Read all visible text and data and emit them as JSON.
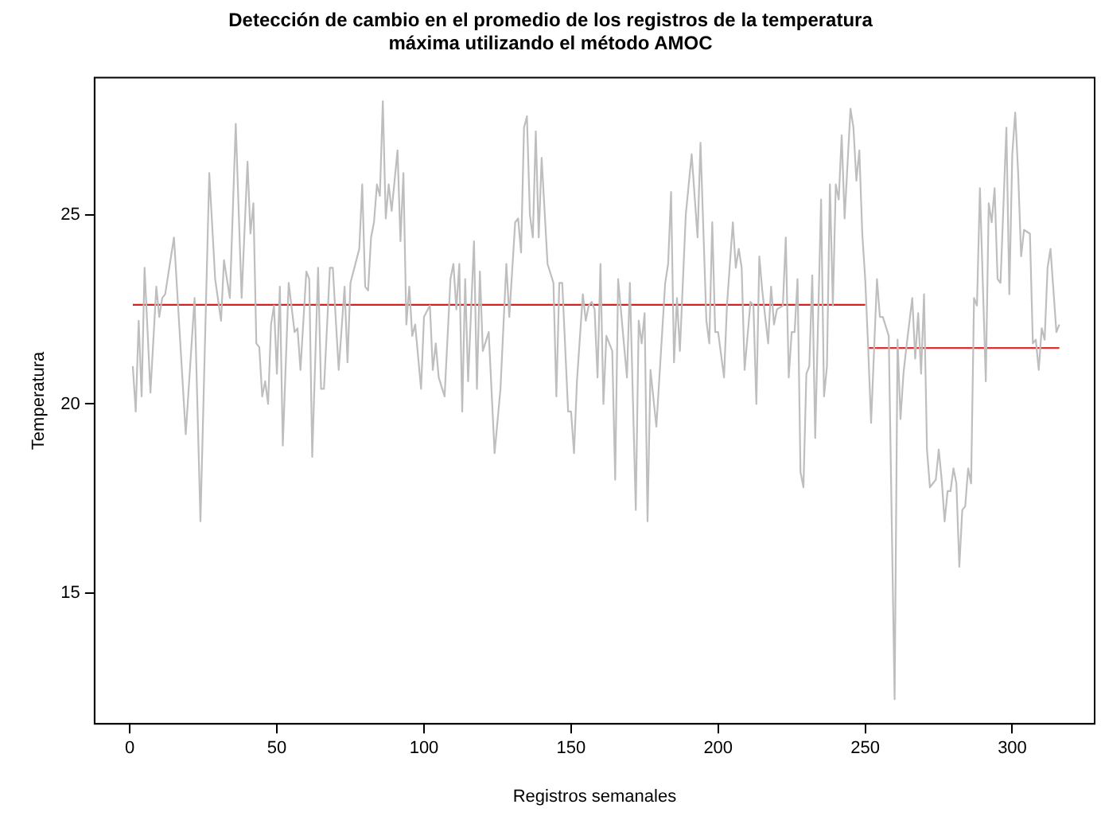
{
  "chart_data": {
    "type": "line",
    "title": [
      "Detección de cambio en el promedio de los registros de la temperatura",
      "máxima utilizando el método AMOC"
    ],
    "xlabel": "Registros semanales",
    "ylabel": "Temperatura",
    "xlim": [
      -12,
      328
    ],
    "xticks": [
      0,
      50,
      100,
      150,
      200,
      250,
      300
    ],
    "ylim": [
      11.55,
      28.62
    ],
    "yticks": [
      15,
      20,
      25
    ],
    "grid": false,
    "legend": false,
    "marker": "none",
    "line_style": "solid",
    "series": [
      {
        "color": "#bebebe",
        "x": [
          1,
          2,
          3,
          4,
          5,
          7,
          9,
          10,
          11,
          12,
          15,
          19,
          22,
          24,
          27,
          29,
          31,
          32,
          34,
          36,
          38,
          40,
          41,
          42,
          43,
          44,
          45,
          46,
          47,
          48,
          49,
          50,
          51,
          52,
          54,
          56,
          57,
          58,
          60,
          61,
          62,
          64,
          65,
          66,
          68,
          69,
          71,
          73,
          74,
          75,
          78,
          79,
          80,
          81,
          82,
          83,
          84,
          85,
          86,
          87,
          88,
          89,
          91,
          92,
          93,
          94,
          95,
          96,
          97,
          99,
          100,
          102,
          103,
          104,
          105,
          107,
          109,
          110,
          111,
          112,
          113,
          114,
          115,
          117,
          118,
          119,
          120,
          122,
          124,
          126,
          128,
          129,
          131,
          132,
          133,
          134,
          135,
          136,
          137,
          138,
          139,
          140,
          142,
          144,
          145,
          146,
          147,
          149,
          150,
          151,
          152,
          154,
          155,
          156,
          157,
          158,
          159,
          160,
          161,
          162,
          164,
          165,
          166,
          169,
          170,
          172,
          173,
          174,
          175,
          176,
          177,
          179,
          182,
          183,
          184,
          185,
          186,
          187,
          189,
          191,
          193,
          194,
          196,
          197,
          198,
          199,
          200,
          202,
          203,
          205,
          206,
          207,
          208,
          209,
          211,
          212,
          213,
          214,
          215,
          217,
          218,
          219,
          220,
          222,
          223,
          224,
          225,
          226,
          227,
          228,
          229,
          230,
          231,
          232,
          233,
          235,
          236,
          237,
          238,
          239,
          240,
          241,
          242,
          243,
          245,
          246,
          247,
          248,
          249,
          250,
          251,
          252,
          254,
          255,
          256,
          258,
          260,
          261,
          262,
          263,
          264,
          266,
          267,
          268,
          269,
          270,
          271,
          272,
          274,
          275,
          276,
          277,
          278,
          279,
          280,
          281,
          282,
          283,
          284,
          285,
          286,
          287,
          288,
          289,
          291,
          292,
          293,
          294,
          295,
          296,
          298,
          299,
          300,
          301,
          302,
          303,
          304,
          306,
          307,
          308,
          309,
          310,
          311,
          312,
          313,
          314,
          315,
          316
        ],
        "values": [
          21.0,
          19.8,
          22.2,
          20.2,
          23.6,
          20.3,
          23.1,
          22.3,
          22.8,
          22.9,
          24.4,
          19.2,
          22.8,
          16.9,
          26.1,
          23.3,
          22.2,
          23.8,
          22.8,
          27.4,
          22.8,
          26.4,
          24.5,
          25.3,
          21.6,
          21.5,
          20.2,
          20.6,
          20.0,
          22.1,
          22.6,
          20.8,
          23.1,
          18.9,
          23.2,
          21.9,
          22.0,
          20.9,
          23.5,
          23.3,
          18.6,
          23.6,
          20.4,
          20.4,
          23.6,
          23.6,
          20.9,
          23.1,
          21.1,
          23.2,
          24.1,
          25.8,
          23.1,
          23.0,
          24.4,
          24.8,
          25.8,
          25.5,
          28.0,
          24.9,
          25.8,
          25.1,
          26.7,
          24.3,
          26.1,
          22.1,
          23.1,
          21.8,
          22.1,
          20.4,
          22.3,
          22.6,
          20.9,
          21.6,
          20.7,
          20.2,
          23.3,
          23.7,
          22.5,
          23.7,
          19.8,
          23.3,
          20.6,
          24.3,
          20.4,
          23.5,
          21.4,
          21.9,
          18.7,
          20.4,
          23.7,
          22.3,
          24.8,
          24.9,
          24.0,
          27.3,
          27.6,
          25.0,
          24.4,
          27.2,
          24.4,
          26.5,
          23.7,
          23.2,
          20.2,
          23.2,
          23.2,
          19.8,
          19.8,
          18.7,
          20.6,
          22.9,
          22.2,
          22.6,
          22.7,
          22.5,
          20.7,
          23.7,
          20.0,
          21.8,
          21.4,
          18.0,
          23.3,
          20.7,
          23.2,
          17.2,
          22.2,
          21.6,
          22.4,
          16.9,
          20.9,
          19.4,
          23.2,
          23.7,
          25.6,
          21.1,
          22.8,
          21.4,
          25.0,
          26.6,
          24.4,
          26.9,
          22.2,
          21.6,
          24.8,
          21.9,
          21.9,
          20.7,
          22.6,
          24.8,
          23.6,
          24.1,
          23.6,
          20.9,
          22.7,
          22.6,
          20.0,
          23.9,
          23.0,
          21.6,
          23.1,
          22.1,
          22.5,
          22.6,
          24.4,
          20.7,
          21.9,
          21.9,
          23.3,
          18.2,
          17.8,
          20.8,
          21.0,
          23.4,
          19.1,
          25.4,
          20.2,
          21.0,
          25.8,
          22.6,
          25.8,
          25.4,
          27.1,
          24.9,
          27.8,
          27.3,
          25.9,
          26.7,
          24.5,
          23.3,
          21.5,
          19.5,
          23.3,
          22.3,
          22.3,
          21.8,
          12.2,
          21.7,
          19.6,
          20.8,
          21.5,
          22.8,
          21.2,
          22.4,
          20.8,
          22.9,
          18.8,
          17.8,
          18.0,
          18.8,
          18.0,
          16.9,
          17.7,
          17.7,
          18.3,
          17.9,
          15.7,
          17.2,
          17.3,
          18.3,
          17.9,
          22.8,
          22.6,
          25.7,
          20.6,
          25.3,
          24.8,
          25.7,
          23.3,
          23.2,
          27.3,
          22.9,
          26.6,
          27.7,
          26.1,
          23.9,
          24.6,
          24.5,
          21.6,
          21.7,
          20.9,
          22.0,
          21.7,
          23.6,
          24.1,
          23.0,
          21.9,
          22.1
        ]
      },
      {
        "type": "line",
        "color": "#d42020",
        "x": [
          1,
          250
        ],
        "values": [
          22.62,
          22.62
        ]
      },
      {
        "type": "line",
        "color": "#e03030",
        "x": [
          251,
          316
        ],
        "values": [
          21.48,
          21.48
        ]
      }
    ]
  }
}
